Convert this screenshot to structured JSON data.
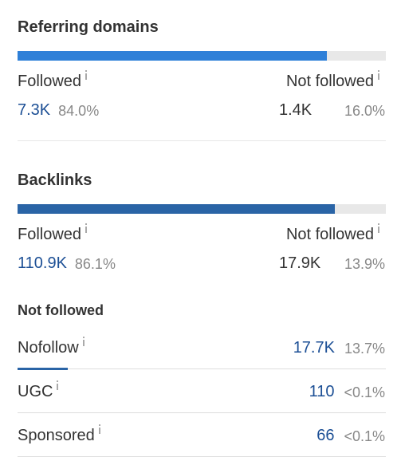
{
  "referring_domains": {
    "title": "Referring domains",
    "followed": {
      "label": "Followed",
      "value": "7.3K",
      "percent": "84.0%"
    },
    "not_followed": {
      "label": "Not followed",
      "value": "1.4K",
      "percent": "16.0%"
    }
  },
  "backlinks": {
    "title": "Backlinks",
    "followed": {
      "label": "Followed",
      "value": "110.9K",
      "percent": "86.1%"
    },
    "not_followed": {
      "label": "Not followed",
      "value": "17.9K",
      "percent": "13.9%"
    }
  },
  "not_followed_breakdown": {
    "title": "Not followed",
    "rows": [
      {
        "label": "Nofollow",
        "value": "17.7K",
        "percent": "13.7%"
      },
      {
        "label": "UGC",
        "value": "110",
        "percent": "<0.1%"
      },
      {
        "label": "Sponsored",
        "value": "66",
        "percent": "<0.1%"
      }
    ]
  }
}
